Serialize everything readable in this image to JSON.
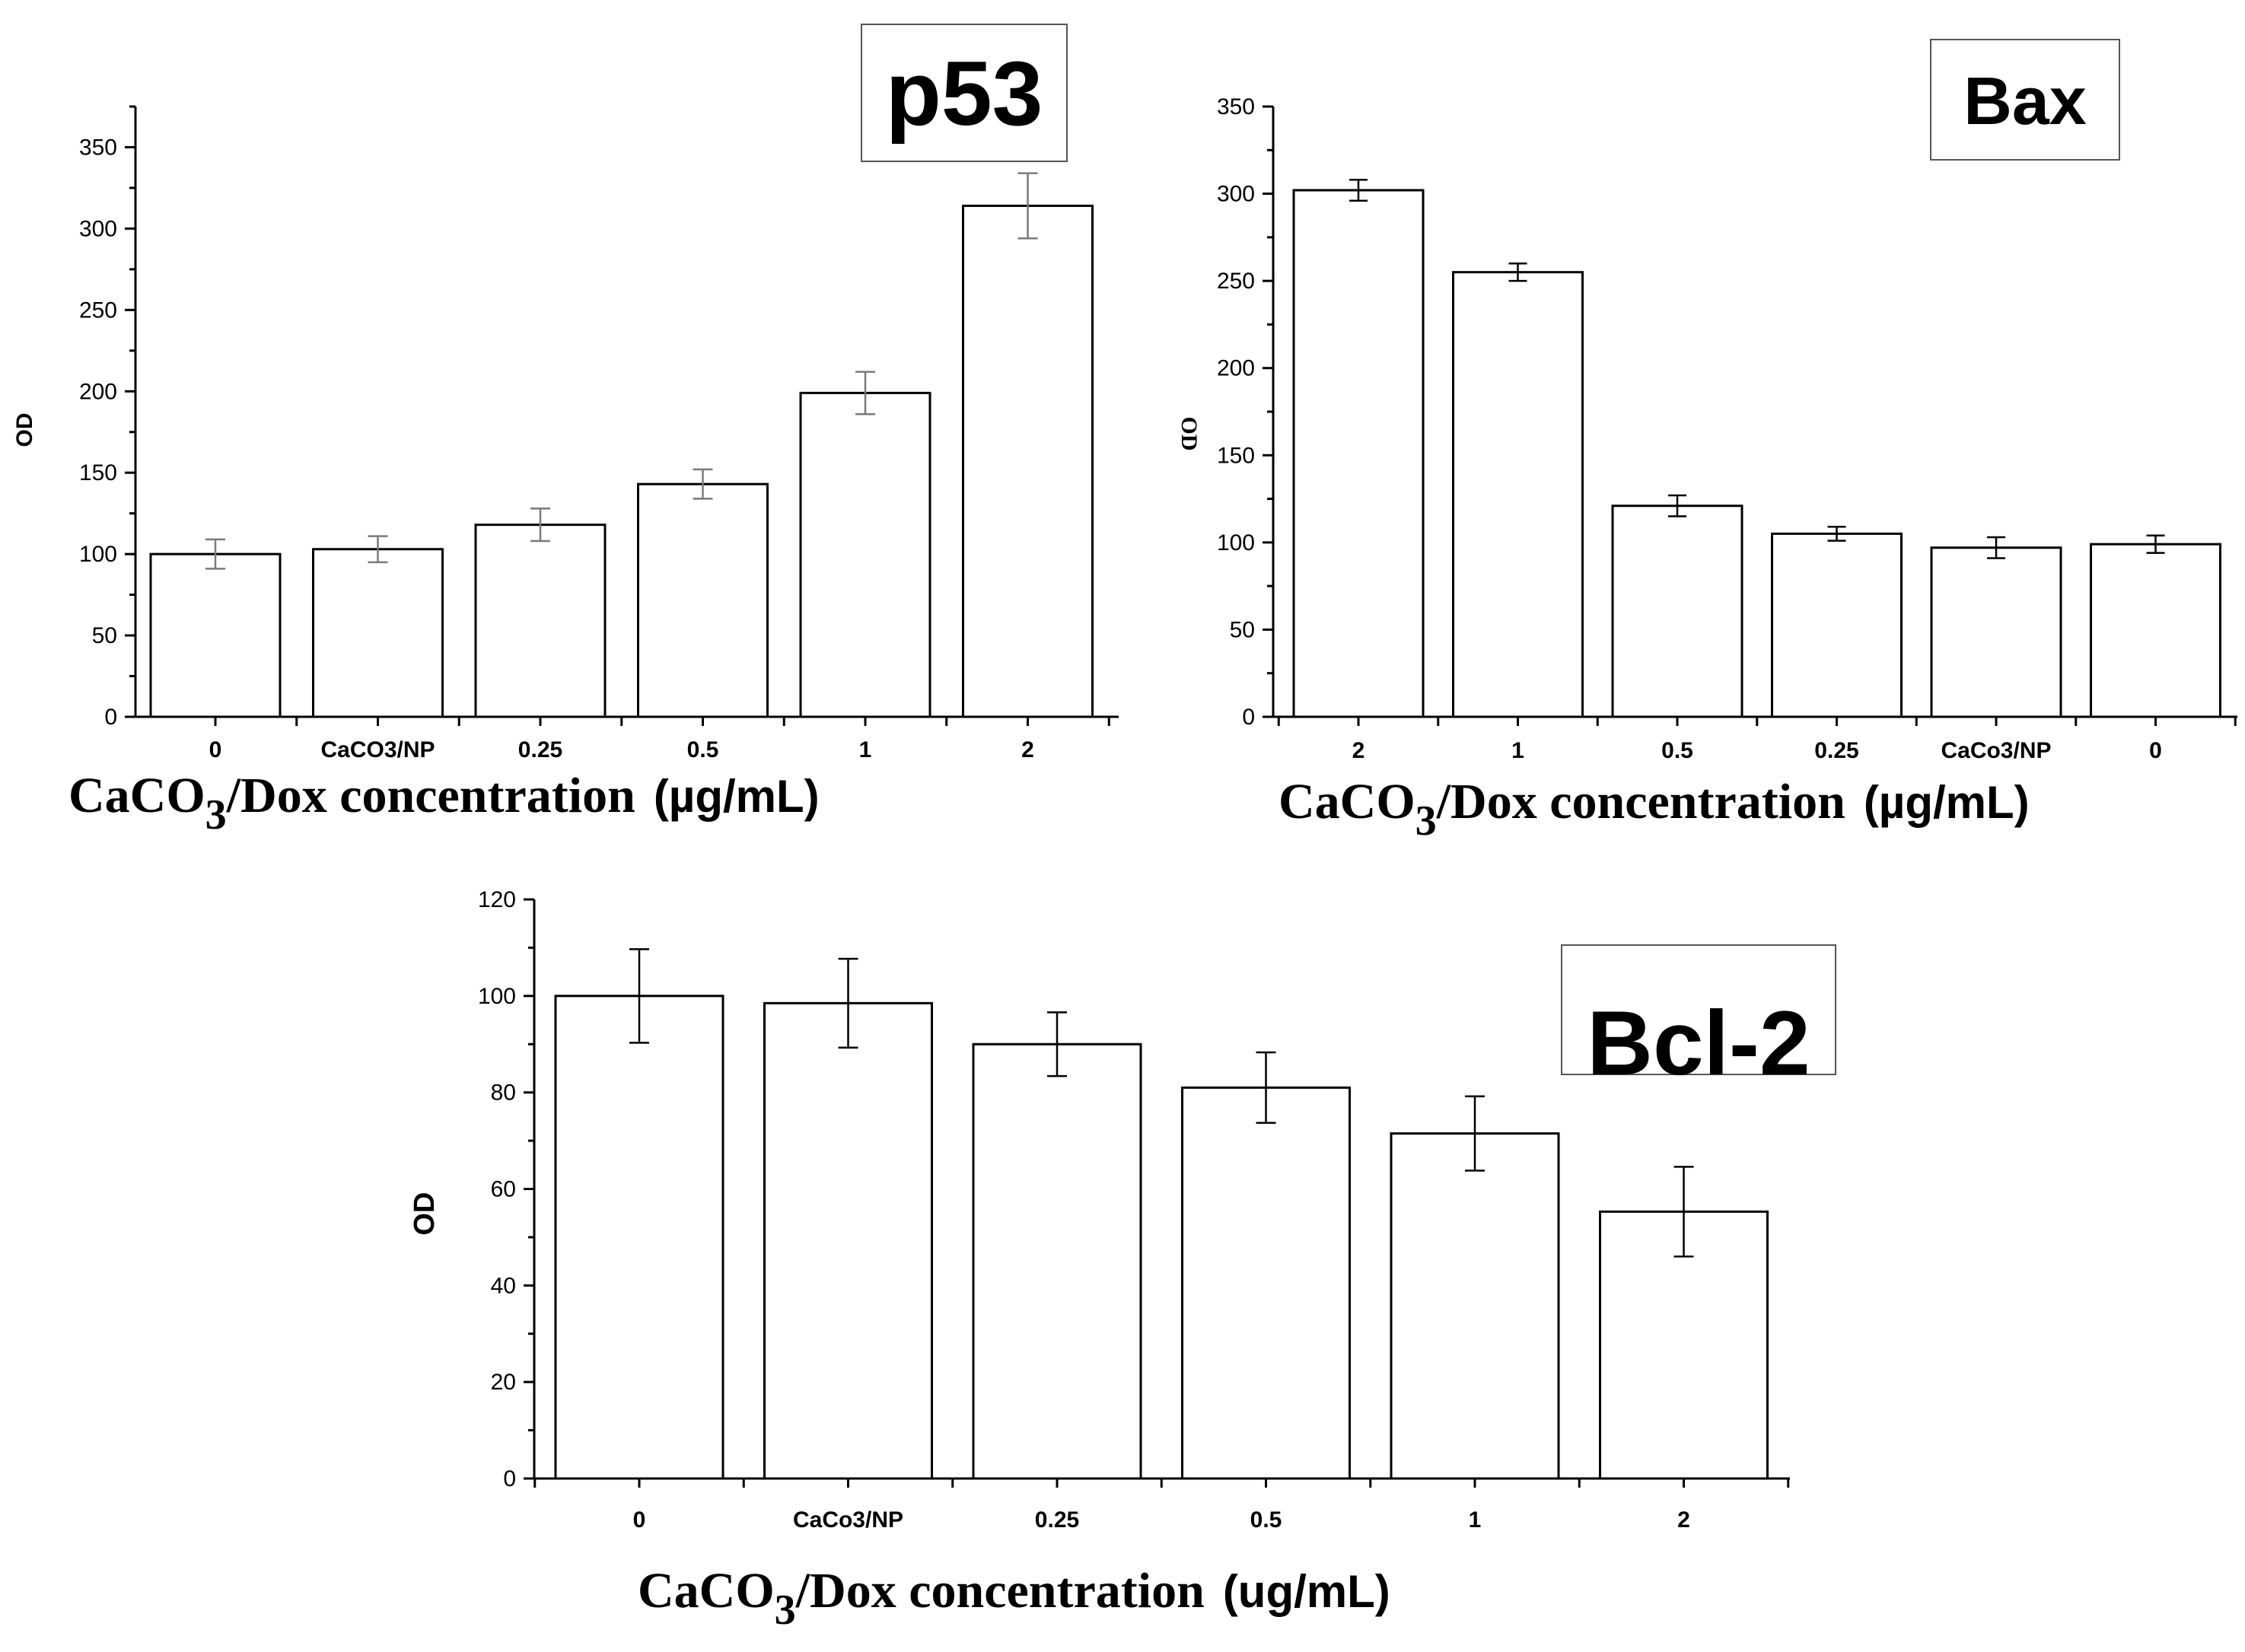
{
  "chart_data": [
    {
      "id": "p53",
      "type": "bar",
      "title": "p53",
      "ylabel": "OD",
      "xlabel": {
        "chem_main": "CaCO",
        "chem_sub": "3",
        "chem_rest": "/Dox concentration",
        "unit": "(µg/mL)"
      },
      "categories": [
        "0",
        "CaCO3/NP",
        "0.25",
        "0.5",
        "1",
        "2"
      ],
      "values": [
        100,
        103,
        118,
        143,
        199,
        314
      ],
      "errors": [
        9,
        8,
        10,
        9,
        13,
        20
      ],
      "ylim": [
        0,
        375
      ],
      "yticks": [
        0,
        50,
        100,
        150,
        200,
        250,
        300,
        350
      ],
      "yticks_text": [
        "0",
        "50",
        "100",
        "150",
        "200",
        "250",
        "300",
        "350"
      ]
    },
    {
      "id": "bax",
      "type": "bar",
      "title": "Bax",
      "ylabel": "OD",
      "xlabel": {
        "chem_main": "CaCO",
        "chem_sub": "3",
        "chem_rest": "/Dox concentration",
        "unit": "(µg/mL)"
      },
      "categories": [
        "2",
        "1",
        "0.5",
        "0.25",
        "CaCo3/NP",
        "0"
      ],
      "values": [
        302,
        255,
        121,
        105,
        97,
        99
      ],
      "errors": [
        6,
        5,
        6,
        4,
        6,
        5
      ],
      "ylim": [
        0,
        350
      ],
      "yticks": [
        0,
        50,
        100,
        150,
        200,
        250,
        300,
        350
      ],
      "yticks_text": [
        "0",
        "50",
        "100",
        "150",
        "200",
        "250",
        "300",
        "350"
      ]
    },
    {
      "id": "bcl2",
      "type": "bar",
      "title": "Bcl-2",
      "ylabel": "OD",
      "xlabel": {
        "chem_main": "CaCO",
        "chem_sub": "3",
        "chem_rest": "/Dox concentration",
        "unit": "(ug/mL)"
      },
      "categories": [
        "0",
        "CaCo3/NP",
        "0.25",
        "0.5",
        "1",
        "2"
      ],
      "values": [
        100,
        98.5,
        90,
        81,
        71.5,
        55.3
      ],
      "errors": [
        9.7,
        9.2,
        6.6,
        7.3,
        7.7,
        9.3
      ],
      "ylim": [
        0,
        120
      ],
      "yticks": [
        0,
        20,
        40,
        60,
        80,
        100,
        120
      ],
      "yticks_text": [
        "0",
        "20",
        "40",
        "60",
        "80",
        "100",
        "120"
      ]
    }
  ]
}
